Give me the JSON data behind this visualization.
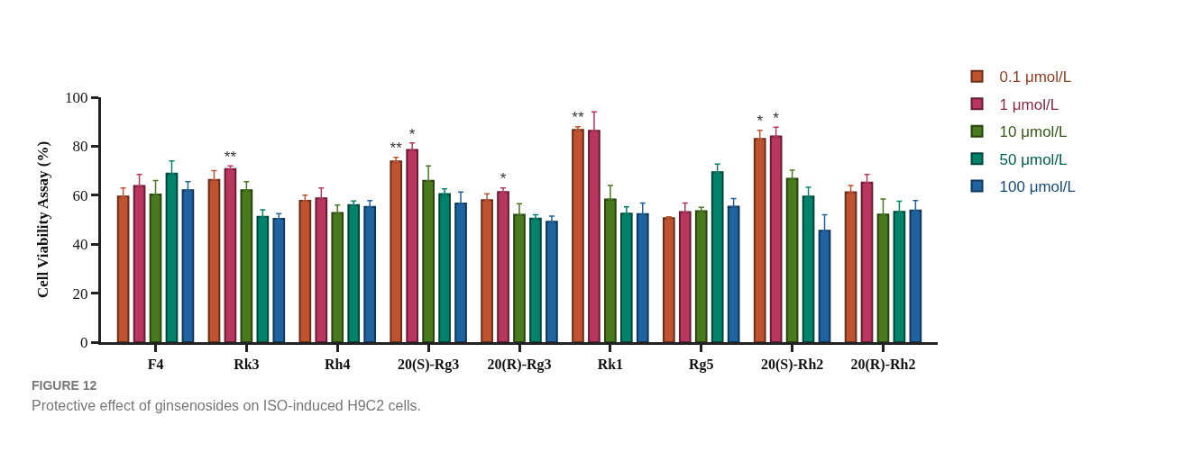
{
  "chart_data": {
    "type": "bar",
    "ylabel": "Cell Viability Assay (%)",
    "categories": [
      "F4",
      "Rk3",
      "Rh4",
      "20(S)-Rg3",
      "20(R)-Rg3",
      "Rk1",
      "Rg5",
      "20(S)-Rh2",
      "20(R)-Rh2"
    ],
    "series": [
      {
        "name": "0.1 μmol/L",
        "color": "#c0532f",
        "values": [
          59.5,
          66.3,
          57.7,
          73.8,
          58.0,
          86.7,
          50.6,
          83.0,
          61.2
        ],
        "value_labels": [
          null,
          null,
          null,
          "**",
          null,
          "**",
          null,
          "*",
          null
        ],
        "errors": [
          [
            59.5,
            63
          ],
          [
            66.3,
            70
          ],
          [
            57.7,
            60
          ],
          [
            73.8,
            75.5
          ],
          [
            58.0,
            60.6
          ],
          [
            86.7,
            88
          ],
          [
            50.6,
            51.2
          ],
          [
            83.0,
            86.5
          ],
          [
            61.2,
            64
          ]
        ]
      },
      {
        "name": "1 μmol/L",
        "color": "#b9365f",
        "values": [
          63.8,
          70.7,
          58.7,
          78.5,
          61.3,
          86.3,
          53.1,
          84.0,
          65.2
        ],
        "value_labels": [
          null,
          "**",
          null,
          "*",
          "*",
          null,
          null,
          "*",
          null
        ],
        "errors": [
          [
            63.8,
            68.5
          ],
          [
            70.7,
            72
          ],
          [
            58.7,
            63
          ],
          [
            78.5,
            81.3
          ],
          [
            61.3,
            63
          ],
          [
            86.3,
            94
          ],
          [
            53.1,
            56.8
          ],
          [
            84.0,
            87.8
          ],
          [
            65.2,
            68.5
          ]
        ]
      },
      {
        "name": "10 μmol/L",
        "color": "#4a7a1e",
        "values": [
          60.3,
          62.0,
          52.8,
          65.9,
          52.0,
          58.3,
          53.5,
          66.7,
          52.1
        ],
        "errors": [
          [
            60.3,
            66
          ],
          [
            62.0,
            65.5
          ],
          [
            52.8,
            56
          ],
          [
            65.9,
            72
          ],
          [
            52.0,
            56.5
          ],
          [
            58.3,
            64
          ],
          [
            53.5,
            55.1
          ],
          [
            66.7,
            70.2
          ],
          [
            52.1,
            58.5
          ]
        ]
      },
      {
        "name": "50 μmol/L",
        "color": "#00826b",
        "values": [
          68.8,
          51.2,
          56.0,
          60.5,
          50.5,
          52.5,
          69.4,
          59.5,
          53.2
        ],
        "errors": [
          [
            68.8,
            74
          ],
          [
            51.2,
            54
          ],
          [
            56.0,
            57.6
          ],
          [
            60.5,
            62.6
          ],
          [
            50.5,
            52
          ],
          [
            52.5,
            55.2
          ],
          [
            69.4,
            72.7
          ],
          [
            59.5,
            63.2
          ],
          [
            53.2,
            57.5
          ]
        ]
      },
      {
        "name": "100 μmol/L",
        "color": "#1f64a0",
        "values": [
          62.0,
          50.4,
          55.2,
          56.6,
          49.2,
          52.3,
          55.3,
          45.5,
          53.8
        ],
        "errors": [
          [
            62.0,
            65.5
          ],
          [
            50.4,
            52.5
          ],
          [
            55.2,
            57.8
          ],
          [
            56.6,
            61.3
          ],
          [
            49.2,
            51.5
          ],
          [
            52.3,
            56.8
          ],
          [
            55.3,
            58.6
          ],
          [
            45.5,
            52
          ],
          [
            53.8,
            57.8
          ]
        ]
      }
    ],
    "ylim": [
      0,
      100
    ],
    "yticks": [
      0,
      20,
      40,
      60,
      80,
      100
    ],
    "legend": "top right",
    "annotations": [
      "FIGURE 12",
      "Protective effect of ginsenosides on ISO-induced H9C2 cells."
    ]
  }
}
